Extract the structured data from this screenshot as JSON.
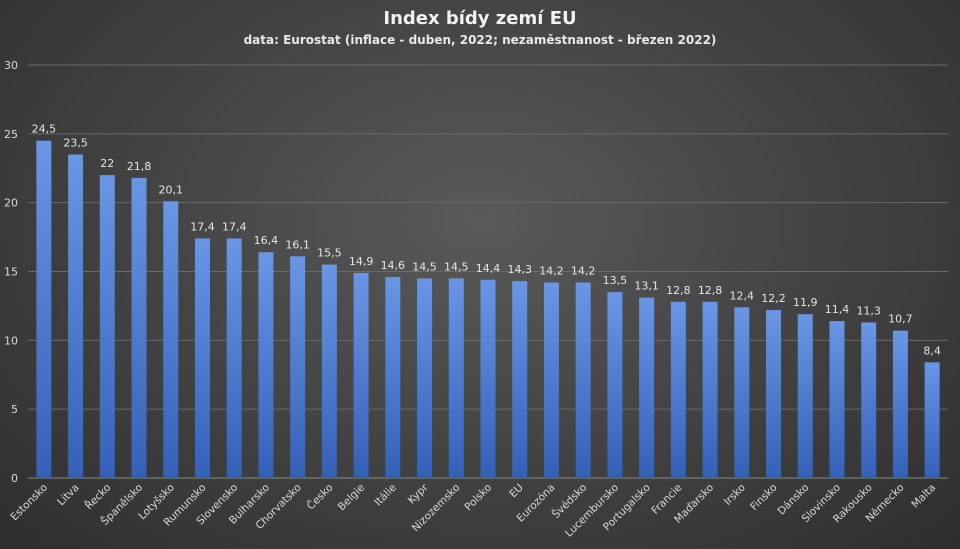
{
  "chart_data": {
    "type": "bar",
    "title": "Index bídy zemí EU",
    "subtitle": "data: Eurostat (inflace - duben, 2022; nezaměstnanost - březen 2022)",
    "xlabel": "",
    "ylabel": "",
    "ylim": [
      0,
      30
    ],
    "yticks": [
      0,
      5,
      10,
      15,
      20,
      25,
      30
    ],
    "grid": true,
    "legend": "none",
    "bar_color": "#4f7fd4",
    "categories": [
      "Estonsko",
      "Litva",
      "Řecko",
      "Španělsko",
      "Lotyšsko",
      "Rumunsko",
      "Slovensko",
      "Bulharsko",
      "Chorvatsko",
      "Česko",
      "Belgie",
      "Itálie",
      "Kypr",
      "Nizozemsko",
      "Polsko",
      "EU",
      "Eurozóna",
      "Švédsko",
      "Lucembursko",
      "Portugalsko",
      "Francie",
      "Maďarsko",
      "Irsko",
      "Finsko",
      "Dánsko",
      "Slovinsko",
      "Rakousko",
      "Německo",
      "Malta"
    ],
    "values": [
      24.5,
      23.5,
      22,
      21.8,
      20.1,
      17.4,
      17.4,
      16.4,
      16.1,
      15.5,
      14.9,
      14.6,
      14.5,
      14.5,
      14.4,
      14.3,
      14.2,
      14.2,
      13.5,
      13.1,
      12.8,
      12.8,
      12.4,
      12.2,
      11.9,
      11.4,
      11.3,
      10.7,
      8.4
    ],
    "value_labels": [
      "24,5",
      "23,5",
      "22",
      "21,8",
      "20,1",
      "17,4",
      "17,4",
      "16,4",
      "16,1",
      "15,5",
      "14,9",
      "14,6",
      "14,5",
      "14,5",
      "14,4",
      "14,3",
      "14,2",
      "14,2",
      "13,5",
      "13,1",
      "12,8",
      "12,8",
      "12,4",
      "12,2",
      "11,9",
      "11,4",
      "11,3",
      "10,7",
      "8,4"
    ]
  }
}
